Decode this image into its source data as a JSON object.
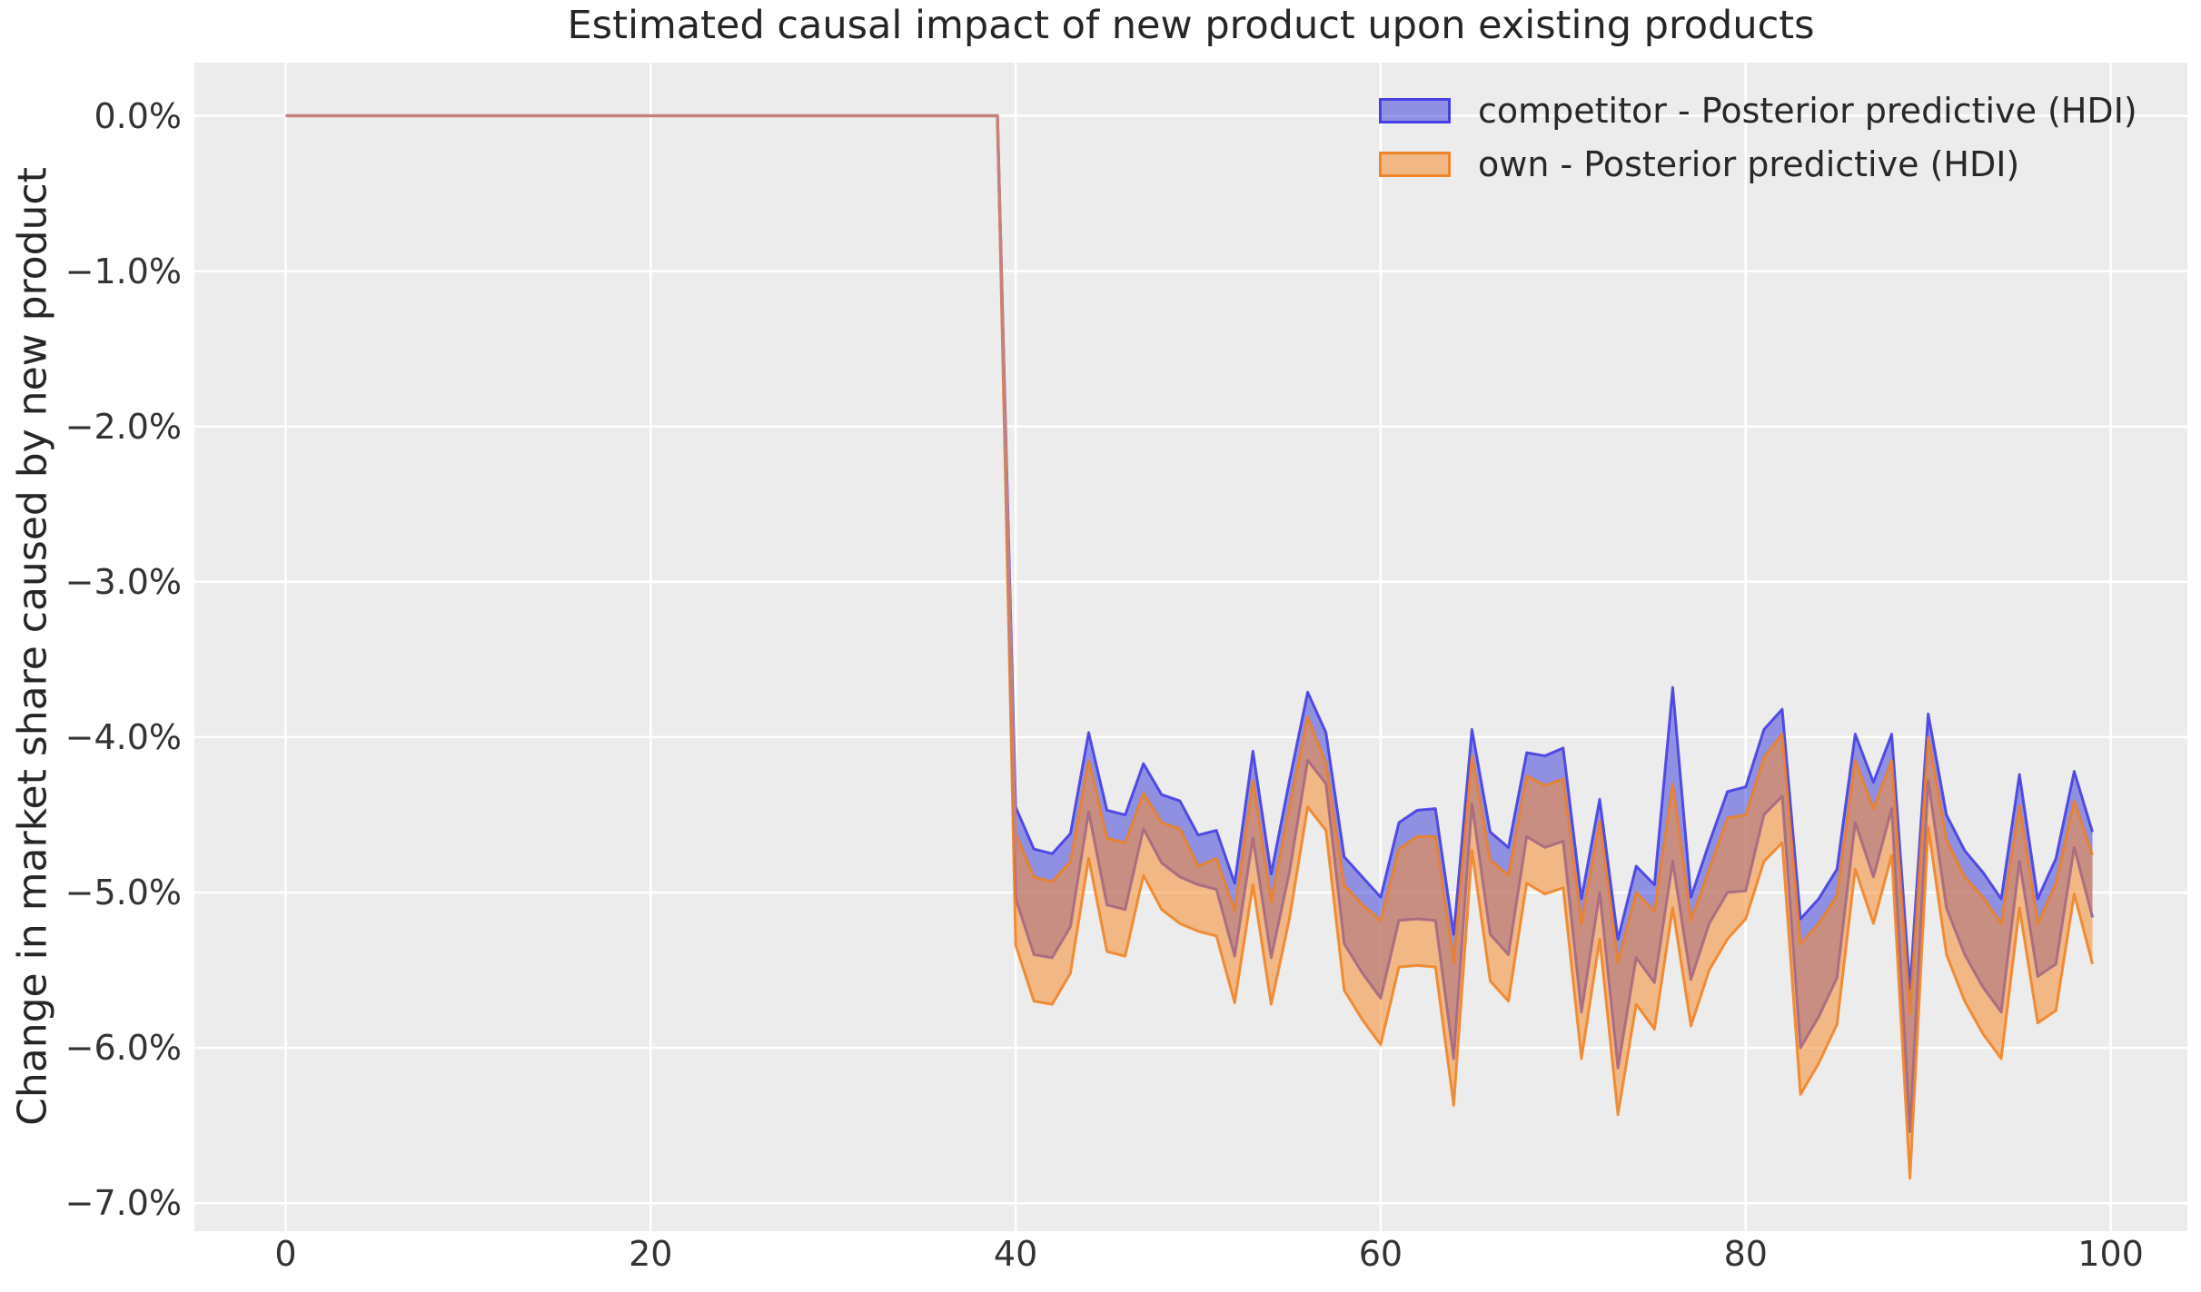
{
  "title": "Estimated causal impact of new product upon existing products",
  "y_axis": {
    "label": "Change in market share caused by new product",
    "tick_labels": [
      "0.0%",
      "−1.0%",
      "−2.0%",
      "−3.0%",
      "−4.0%",
      "−5.0%",
      "−6.0%",
      "−7.0%"
    ]
  },
  "x_axis": {
    "tick_labels": [
      "0",
      "20",
      "40",
      "60",
      "80",
      "100"
    ]
  },
  "legend": {
    "items": [
      {
        "label": "competitor - Posterior predictive (HDI)",
        "patch_fill": "rgba(70,70,220,0.55)",
        "patch_border": "rgba(62,54,228,0.9)"
      },
      {
        "label": "own - Posterior predictive (HDI)",
        "patch_fill": "rgba(245,140,50,0.55)",
        "patch_border": "rgba(238,128,32,0.9)"
      }
    ]
  },
  "colors": {
    "figure_bg": "#ffffff",
    "plot_bg": "#ececec",
    "grid": "#ffffff",
    "title_text": "#262626",
    "tick_text": "#333333",
    "competitor_fill": "rgba(70,70,220,0.55)",
    "competitor_edge": "rgba(62,54,228,0.85)",
    "own_fill": "rgba(245,140,50,0.55)",
    "own_edge": "rgba(238,128,32,0.85)",
    "pre_period_line": "#c5827b"
  },
  "chart_data": {
    "type": "area",
    "title": "Estimated causal impact of new product upon existing products",
    "xlabel": "",
    "ylabel": "Change in market share caused by new product",
    "xlim": [
      -5,
      104.2
    ],
    "ylim": [
      -7.18,
      0.342
    ],
    "x_ticks": [
      0,
      20,
      40,
      60,
      80,
      100
    ],
    "y_ticks": [
      0,
      -1,
      -2,
      -3,
      -4,
      -5,
      -6,
      -7
    ],
    "grid": true,
    "legend_position": "upper right",
    "units": "percent change in market share",
    "treatment_start_x": 40,
    "pre_period_line": {
      "x": [
        0,
        39,
        40
      ],
      "y": [
        0,
        0,
        -4.75
      ]
    },
    "series": [
      {
        "name": "competitor - Posterior predictive (HDI)",
        "band": "hdi",
        "x": [
          39,
          40,
          41,
          42,
          43,
          44,
          45,
          46,
          47,
          48,
          49,
          50,
          51,
          52,
          53,
          54,
          55,
          56,
          57,
          58,
          59,
          60,
          61,
          62,
          63,
          64,
          65,
          66,
          67,
          68,
          69,
          70,
          71,
          72,
          73,
          74,
          75,
          76,
          77,
          78,
          79,
          80,
          81,
          82,
          83,
          84,
          85,
          86,
          87,
          88,
          89,
          90,
          91,
          92,
          93,
          94,
          95,
          96,
          97,
          98,
          99
        ],
        "upper": [
          0,
          -4.45,
          -4.72,
          -4.75,
          -4.62,
          -3.97,
          -4.47,
          -4.5,
          -4.17,
          -4.37,
          -4.41,
          -4.63,
          -4.6,
          -4.94,
          -4.09,
          -4.88,
          -4.28,
          -3.71,
          -3.97,
          -4.77,
          -4.9,
          -5.03,
          -4.55,
          -4.47,
          -4.46,
          -5.27,
          -3.95,
          -4.61,
          -4.71,
          -4.1,
          -4.12,
          -4.07,
          -5.04,
          -4.4,
          -5.3,
          -4.83,
          -4.95,
          -3.68,
          -5.03,
          -4.68,
          -4.35,
          -4.32,
          -3.95,
          -3.82,
          -5.17,
          -5.04,
          -4.85,
          -3.98,
          -4.29,
          -3.98,
          -5.62,
          -3.85,
          -4.5,
          -4.73,
          -4.87,
          -5.04,
          -4.24,
          -5.04,
          -4.78,
          -4.22,
          -4.61
        ],
        "lower": [
          0,
          -5.04,
          -5.4,
          -5.42,
          -5.22,
          -4.48,
          -5.08,
          -5.11,
          -4.59,
          -4.81,
          -4.9,
          -4.95,
          -4.98,
          -5.41,
          -4.65,
          -5.42,
          -4.87,
          -4.15,
          -4.3,
          -5.33,
          -5.52,
          -5.68,
          -5.18,
          -5.17,
          -5.18,
          -6.07,
          -4.43,
          -5.27,
          -5.4,
          -4.64,
          -4.71,
          -4.67,
          -5.77,
          -5.0,
          -6.13,
          -5.42,
          -5.58,
          -4.8,
          -5.56,
          -5.2,
          -5.0,
          -4.99,
          -4.5,
          -4.38,
          -6.0,
          -5.8,
          -5.55,
          -4.55,
          -4.9,
          -4.46,
          -6.54,
          -4.28,
          -5.1,
          -5.4,
          -5.61,
          -5.77,
          -4.8,
          -5.54,
          -5.46,
          -4.71,
          -5.16
        ]
      },
      {
        "name": "own - Posterior predictive (HDI)",
        "band": "hdi",
        "x": [
          39,
          40,
          41,
          42,
          43,
          44,
          45,
          46,
          47,
          48,
          49,
          50,
          51,
          52,
          53,
          54,
          55,
          56,
          57,
          58,
          59,
          60,
          61,
          62,
          63,
          64,
          65,
          66,
          67,
          68,
          69,
          70,
          71,
          72,
          73,
          74,
          75,
          76,
          77,
          78,
          79,
          80,
          81,
          82,
          83,
          84,
          85,
          86,
          87,
          88,
          89,
          90,
          91,
          92,
          93,
          94,
          95,
          96,
          97,
          98,
          99
        ],
        "upper": [
          0,
          -4.62,
          -4.9,
          -4.93,
          -4.8,
          -4.15,
          -4.65,
          -4.68,
          -4.36,
          -4.55,
          -4.59,
          -4.83,
          -4.78,
          -5.12,
          -4.28,
          -5.06,
          -4.45,
          -3.87,
          -4.17,
          -4.95,
          -5.08,
          -5.18,
          -4.72,
          -4.64,
          -4.64,
          -5.45,
          -4.12,
          -4.79,
          -4.89,
          -4.25,
          -4.31,
          -4.27,
          -5.2,
          -4.54,
          -5.45,
          -5.0,
          -5.12,
          -4.3,
          -5.18,
          -4.85,
          -4.52,
          -4.5,
          -4.13,
          -3.98,
          -5.33,
          -5.2,
          -5.02,
          -4.15,
          -4.46,
          -4.15,
          -5.78,
          -4.0,
          -4.66,
          -4.9,
          -5.03,
          -5.2,
          -4.44,
          -5.2,
          -4.94,
          -4.41,
          -4.76
        ],
        "lower": [
          0,
          -5.34,
          -5.7,
          -5.72,
          -5.52,
          -4.78,
          -5.38,
          -5.41,
          -4.89,
          -5.11,
          -5.2,
          -5.25,
          -5.28,
          -5.71,
          -4.95,
          -5.72,
          -5.17,
          -4.45,
          -4.6,
          -5.63,
          -5.82,
          -5.98,
          -5.48,
          -5.47,
          -5.48,
          -6.37,
          -4.73,
          -5.57,
          -5.7,
          -4.94,
          -5.01,
          -4.97,
          -6.07,
          -5.3,
          -6.43,
          -5.72,
          -5.88,
          -5.1,
          -5.86,
          -5.5,
          -5.3,
          -5.17,
          -4.8,
          -4.68,
          -6.3,
          -6.1,
          -5.85,
          -4.85,
          -5.2,
          -4.76,
          -6.84,
          -4.58,
          -5.4,
          -5.7,
          -5.91,
          -6.07,
          -5.1,
          -5.84,
          -5.76,
          -5.01,
          -5.46
        ]
      }
    ]
  }
}
